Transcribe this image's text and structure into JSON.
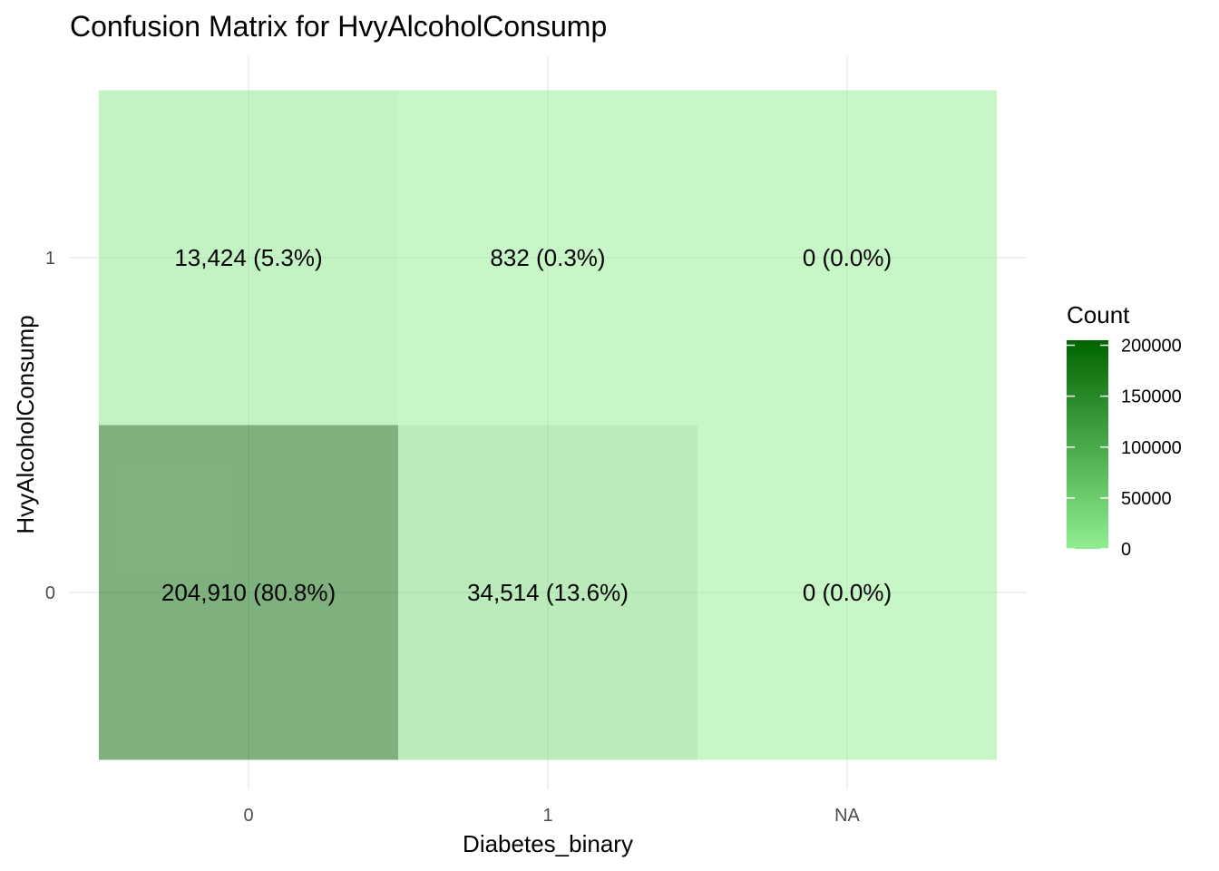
{
  "chart_data": {
    "type": "heatmap",
    "title": "Confusion Matrix for HvyAlcoholConsump",
    "xlabel": "Diabetes_binary",
    "ylabel": "HvyAlcoholConsump",
    "x_categories": [
      "0",
      "1",
      "NA"
    ],
    "y_categories": [
      "0",
      "1"
    ],
    "cells": [
      {
        "x": "0",
        "y": "1",
        "count": 13424,
        "label": "13,424 (5.3%)"
      },
      {
        "x": "1",
        "y": "1",
        "count": 832,
        "label": "832 (0.3%)"
      },
      {
        "x": "NA",
        "y": "1",
        "count": 0,
        "label": "0 (0.0%)"
      },
      {
        "x": "0",
        "y": "0",
        "count": 204910,
        "label": "204,910 (80.8%)"
      },
      {
        "x": "1",
        "y": "0",
        "count": 34514,
        "label": "34,514 (13.6%)"
      },
      {
        "x": "NA",
        "y": "0",
        "count": 0,
        "label": "0 (0.0%)"
      }
    ],
    "legend": {
      "title": "Count",
      "ticks": [
        0,
        50000,
        100000,
        150000,
        200000
      ],
      "tick_labels": [
        "0",
        "50000",
        "100000",
        "150000",
        "200000"
      ],
      "min": 0,
      "max": 204910,
      "low_color": "#90ee90",
      "high_color": "#006400",
      "placement": "right"
    },
    "cell_alpha": 0.5,
    "grid": true
  }
}
